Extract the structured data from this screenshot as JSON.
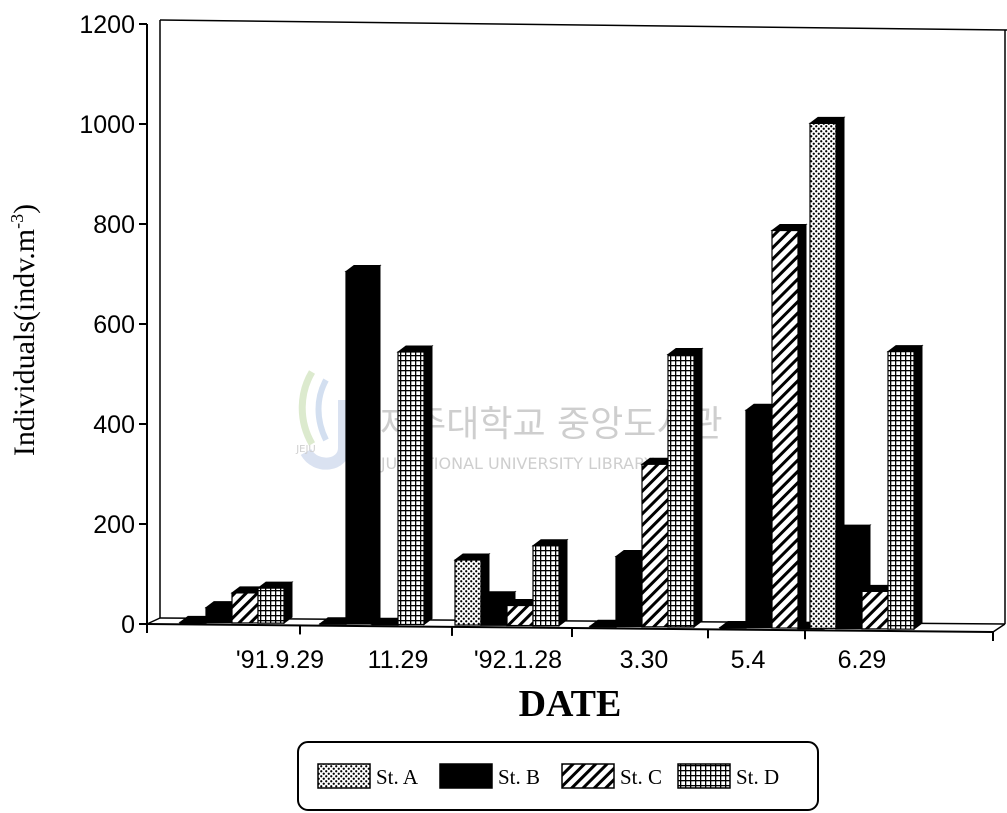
{
  "chart_data": {
    "type": "bar",
    "title": "",
    "xlabel": "DATE",
    "ylabel_main": "Individuals(indv.m",
    "ylabel_sup": "-3",
    "ylabel_end": ")",
    "ylim": [
      0,
      1200
    ],
    "yticks": [
      0,
      200,
      400,
      600,
      800,
      1000,
      1200
    ],
    "categories": [
      "'91.9.29",
      "11.29",
      "'92.1.28",
      "3.30",
      "5.4",
      "6.29"
    ],
    "series": [
      {
        "name": "St. A",
        "values": [
          0,
          0,
          130,
          0,
          0,
          1010
        ]
      },
      {
        "name": "St. B",
        "values": [
          30,
          705,
          55,
          140,
          435,
          195
        ]
      },
      {
        "name": "St. C",
        "values": [
          60,
          0,
          40,
          325,
          795,
          75
        ]
      },
      {
        "name": "St. D",
        "values": [
          70,
          545,
          160,
          545,
          0,
          555
        ]
      }
    ],
    "legend_position": "bottom",
    "grid": false
  },
  "watermark": {
    "title": "제주대학교 중앙도서관",
    "subtitle": "JEJU NATIONAL UNIVERSITY LIBRARY",
    "badge": "JEJU"
  }
}
